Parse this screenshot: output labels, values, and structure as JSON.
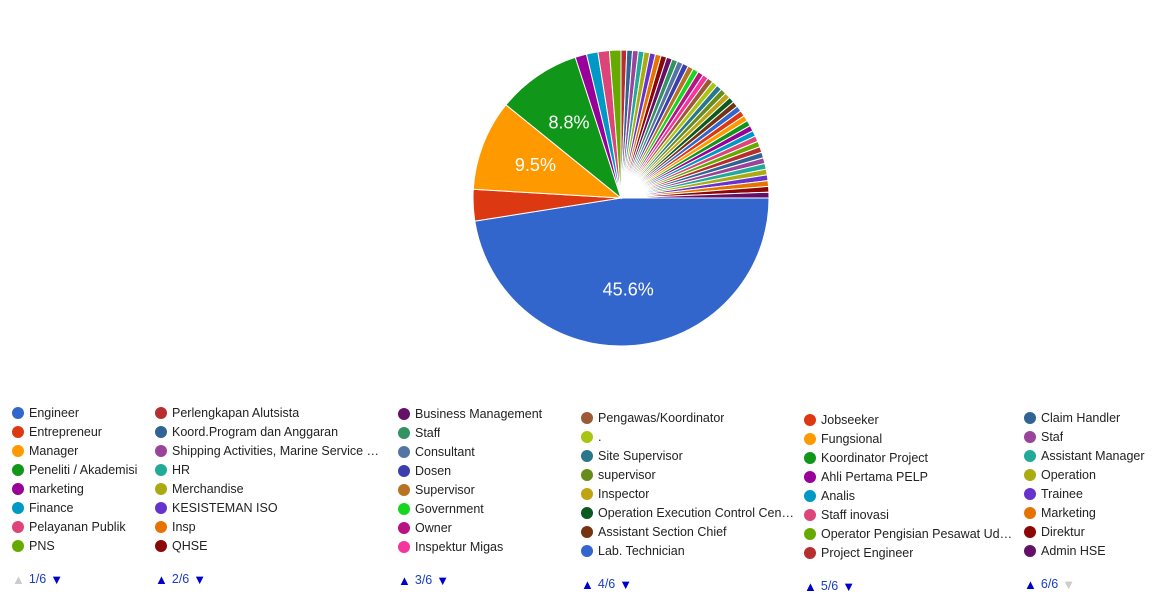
{
  "chart_data": {
    "type": "pie",
    "start_angle_deg": 90,
    "slices": [
      {
        "label": "Engineer",
        "value": 45.6,
        "color": "#3366cc",
        "show_label": true,
        "display": "45.6%"
      },
      {
        "label": "Entrepreneur",
        "value": 3.3,
        "color": "#dc3912"
      },
      {
        "label": "Manager",
        "value": 9.5,
        "color": "#ff9900",
        "show_label": true,
        "display": "9.5%"
      },
      {
        "label": "Peneliti / Akademisi",
        "value": 8.8,
        "color": "#109618",
        "show_label": true,
        "display": "8.8%"
      },
      {
        "label": "marketing",
        "value": 1.2,
        "color": "#990099"
      },
      {
        "label": "Finance",
        "value": 1.2,
        "color": "#0099c6"
      },
      {
        "label": "Pelayanan Publik",
        "value": 1.2,
        "color": "#dd4477"
      },
      {
        "label": "PNS",
        "value": 1.2,
        "color": "#66aa00"
      },
      {
        "label": "Perlengkapan Alutsista",
        "value": 0.6,
        "color": "#b82e2e"
      },
      {
        "label": "Koord.Program dan Anggaran",
        "value": 0.6,
        "color": "#316395"
      },
      {
        "label": "Shipping Activities, Marine Service &...",
        "value": 0.6,
        "color": "#994499"
      },
      {
        "label": "HR",
        "value": 0.6,
        "color": "#22aa99"
      },
      {
        "label": "Merchandise",
        "value": 0.6,
        "color": "#aaaa11"
      },
      {
        "label": "KESISTEMAN ISO",
        "value": 0.6,
        "color": "#6633cc"
      },
      {
        "label": "Insp",
        "value": 0.6,
        "color": "#e67300"
      },
      {
        "label": "QHSE",
        "value": 0.6,
        "color": "#8b0707"
      },
      {
        "label": "Business Management",
        "value": 0.6,
        "color": "#651067"
      },
      {
        "label": "Staff",
        "value": 0.6,
        "color": "#329262"
      },
      {
        "label": "Consultant",
        "value": 0.6,
        "color": "#5574a6"
      },
      {
        "label": "Dosen",
        "value": 0.6,
        "color": "#3b3eac"
      },
      {
        "label": "Supervisor",
        "value": 0.6,
        "color": "#b77322"
      },
      {
        "label": "Government",
        "value": 0.6,
        "color": "#16d620"
      },
      {
        "label": "Owner",
        "value": 0.6,
        "color": "#b91383"
      },
      {
        "label": "Inspektur Migas",
        "value": 0.6,
        "color": "#f4359e"
      },
      {
        "label": "Pengawas/Koordinator",
        "value": 0.6,
        "color": "#9c5935"
      },
      {
        "label": ".",
        "value": 0.6,
        "color": "#a9c413"
      },
      {
        "label": "Site Supervisor",
        "value": 0.6,
        "color": "#2a778d"
      },
      {
        "label": "supervisor",
        "value": 0.6,
        "color": "#668d1c"
      },
      {
        "label": "Inspector",
        "value": 0.6,
        "color": "#bea413"
      },
      {
        "label": "Operation Execution Control Center",
        "value": 0.6,
        "color": "#0c5922"
      },
      {
        "label": "Assistant Section Chief",
        "value": 0.6,
        "color": "#743411"
      },
      {
        "label": "Lab. Technician",
        "value": 0.6,
        "color": "#3366cc"
      },
      {
        "label": "Jobseeker",
        "value": 0.6,
        "color": "#dc3912"
      },
      {
        "label": "Fungsional",
        "value": 0.6,
        "color": "#ff9900"
      },
      {
        "label": "Koordinator Project",
        "value": 0.6,
        "color": "#109618"
      },
      {
        "label": "Ahli Pertama PELP",
        "value": 0.6,
        "color": "#990099"
      },
      {
        "label": "Analis",
        "value": 0.6,
        "color": "#0099c6"
      },
      {
        "label": "Staff inovasi",
        "value": 0.6,
        "color": "#dd4477"
      },
      {
        "label": "Operator Pengisian Pesawat Udara",
        "value": 0.6,
        "color": "#66aa00"
      },
      {
        "label": "Project Engineer",
        "value": 0.6,
        "color": "#b82e2e"
      },
      {
        "label": "Claim Handler",
        "value": 0.6,
        "color": "#316395"
      },
      {
        "label": "Staf",
        "value": 0.6,
        "color": "#994499"
      },
      {
        "label": "Assistant Manager",
        "value": 0.6,
        "color": "#22aa99"
      },
      {
        "label": "Operation",
        "value": 0.6,
        "color": "#aaaa11"
      },
      {
        "label": "Trainee",
        "value": 0.6,
        "color": "#6633cc"
      },
      {
        "label": "Marketing",
        "value": 0.6,
        "color": "#e67300"
      },
      {
        "label": "Direktur",
        "value": 0.6,
        "color": "#8b0707"
      },
      {
        "label": "Admin HSE",
        "value": 0.6,
        "color": "#651067"
      }
    ]
  },
  "legend": {
    "columns": [
      {
        "items": [
          {
            "label": "Engineer",
            "color": "#3366cc"
          },
          {
            "label": "Entrepreneur",
            "color": "#dc3912"
          },
          {
            "label": "Manager",
            "color": "#ff9900"
          },
          {
            "label": "Peneliti / Akademisi",
            "color": "#109618"
          },
          {
            "label": "marketing",
            "color": "#990099"
          },
          {
            "label": "Finance",
            "color": "#0099c6"
          },
          {
            "label": "Pelayanan Publik",
            "color": "#dd4477"
          },
          {
            "label": "PNS",
            "color": "#66aa00"
          }
        ],
        "pager": {
          "label": "1/6",
          "prev_enabled": false,
          "next_enabled": true
        }
      },
      {
        "items": [
          {
            "label": "Perlengkapan Alutsista",
            "color": "#b82e2e"
          },
          {
            "label": "Koord.Program dan Anggaran",
            "color": "#316395"
          },
          {
            "label": "Shipping Activities, Marine Service &...",
            "color": "#994499"
          },
          {
            "label": "HR",
            "color": "#22aa99"
          },
          {
            "label": "Merchandise",
            "color": "#aaaa11"
          },
          {
            "label": "KESISTEMAN ISO",
            "color": "#6633cc"
          },
          {
            "label": "Insp",
            "color": "#e67300"
          },
          {
            "label": "QHSE",
            "color": "#8b0707"
          }
        ],
        "pager": {
          "label": "2/6",
          "prev_enabled": true,
          "next_enabled": true
        }
      },
      {
        "items": [
          {
            "label": "Business Management",
            "color": "#651067"
          },
          {
            "label": "Staff",
            "color": "#329262"
          },
          {
            "label": "Consultant",
            "color": "#5574a6"
          },
          {
            "label": "Dosen",
            "color": "#3b3eac"
          },
          {
            "label": "Supervisor",
            "color": "#b77322"
          },
          {
            "label": "Government",
            "color": "#16d620"
          },
          {
            "label": "Owner",
            "color": "#b91383"
          },
          {
            "label": "Inspektur Migas",
            "color": "#f4359e"
          }
        ],
        "pager": {
          "label": "3/6",
          "prev_enabled": true,
          "next_enabled": true
        }
      },
      {
        "items": [
          {
            "label": "Pengawas/Koordinator",
            "color": "#9c5935"
          },
          {
            "label": ".",
            "color": "#a9c413"
          },
          {
            "label": "Site Supervisor",
            "color": "#2a778d"
          },
          {
            "label": "supervisor",
            "color": "#668d1c"
          },
          {
            "label": "Inspector",
            "color": "#bea413"
          },
          {
            "label": "Operation Execution Control Center",
            "color": "#0c5922"
          },
          {
            "label": "Assistant Section Chief",
            "color": "#743411"
          },
          {
            "label": "Lab. Technician",
            "color": "#3366cc"
          }
        ],
        "pager": {
          "label": "4/6",
          "prev_enabled": true,
          "next_enabled": true
        }
      },
      {
        "items": [
          {
            "label": "Jobseeker",
            "color": "#dc3912"
          },
          {
            "label": "Fungsional",
            "color": "#ff9900"
          },
          {
            "label": "Koordinator Project",
            "color": "#109618"
          },
          {
            "label": "Ahli Pertama PELP",
            "color": "#990099"
          },
          {
            "label": "Analis",
            "color": "#0099c6"
          },
          {
            "label": "Staff inovasi",
            "color": "#dd4477"
          },
          {
            "label": "Operator Pengisian Pesawat Udara",
            "color": "#66aa00"
          },
          {
            "label": "Project Engineer",
            "color": "#b82e2e"
          }
        ],
        "pager": {
          "label": "5/6",
          "prev_enabled": true,
          "next_enabled": true
        }
      },
      {
        "items": [
          {
            "label": "Claim Handler",
            "color": "#316395"
          },
          {
            "label": "Staf",
            "color": "#994499"
          },
          {
            "label": "Assistant Manager",
            "color": "#22aa99"
          },
          {
            "label": "Operation",
            "color": "#aaaa11"
          },
          {
            "label": "Trainee",
            "color": "#6633cc"
          },
          {
            "label": "Marketing",
            "color": "#e67300"
          },
          {
            "label": "Direktur",
            "color": "#8b0707"
          },
          {
            "label": "Admin HSE",
            "color": "#651067"
          }
        ],
        "pager": {
          "label": "6/6",
          "prev_enabled": true,
          "next_enabled": false
        }
      }
    ]
  }
}
